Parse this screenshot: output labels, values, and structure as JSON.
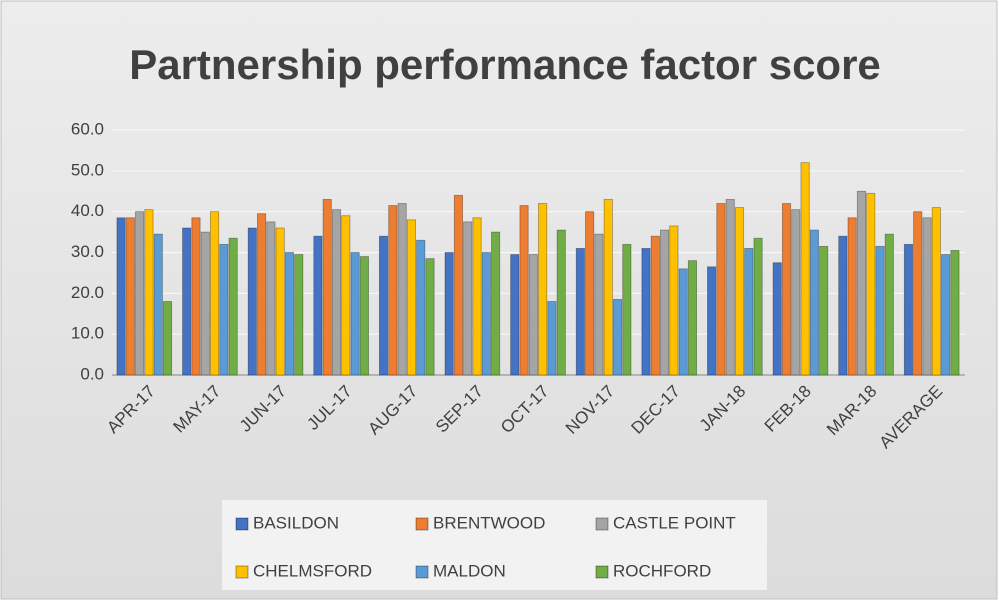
{
  "chart_data": {
    "type": "bar",
    "title": "Partnership performance factor score",
    "categories": [
      "APR-17",
      "MAY-17",
      "JUN-17",
      "JUL-17",
      "AUG-17",
      "SEP-17",
      "OCT-17",
      "NOV-17",
      "DEC-17",
      "JAN-18",
      "FEB-18",
      "MAR-18",
      "AVERAGE"
    ],
    "series": [
      {
        "name": "BASILDON",
        "color": "#4472c4",
        "values": [
          38.5,
          36,
          36,
          34,
          34,
          30,
          29.5,
          31,
          31,
          26.5,
          27.5,
          34,
          32
        ]
      },
      {
        "name": "BRENTWOOD",
        "color": "#ed7d31",
        "values": [
          38.5,
          38.5,
          39.5,
          43,
          41.5,
          44,
          41.5,
          40,
          34,
          42,
          42,
          38.5,
          40
        ]
      },
      {
        "name": "CASTLE POINT",
        "color": "#a5a5a5",
        "values": [
          40,
          35,
          37.5,
          40.5,
          42,
          37.5,
          29.5,
          34.5,
          35.5,
          43,
          40.5,
          45,
          38.5
        ]
      },
      {
        "name": "CHELMSFORD",
        "color": "#ffc000",
        "values": [
          40.5,
          40,
          36,
          39,
          38,
          38.5,
          42,
          43,
          36.5,
          41,
          52,
          44.5,
          41
        ]
      },
      {
        "name": "MALDON",
        "color": "#5b9bd5",
        "values": [
          34.5,
          32,
          30,
          30,
          33,
          30,
          18,
          18.5,
          26,
          31,
          35.5,
          31.5,
          29.5
        ]
      },
      {
        "name": "ROCHFORD",
        "color": "#70ad47",
        "values": [
          18,
          33.5,
          29.5,
          29,
          28.5,
          35,
          35.5,
          32,
          28,
          33.5,
          31.5,
          34.5,
          30.5
        ]
      }
    ],
    "ylim": [
      0,
      60
    ],
    "yticks": [
      {
        "value": 0,
        "label": "0.0"
      },
      {
        "value": 10,
        "label": "10.0"
      },
      {
        "value": 20,
        "label": "20.0"
      },
      {
        "value": 30,
        "label": "30.0"
      },
      {
        "value": 40,
        "label": "40.0"
      },
      {
        "value": 50,
        "label": "50.0"
      },
      {
        "value": 60,
        "label": "60.0"
      }
    ],
    "grid": true,
    "legend": "bottom"
  }
}
